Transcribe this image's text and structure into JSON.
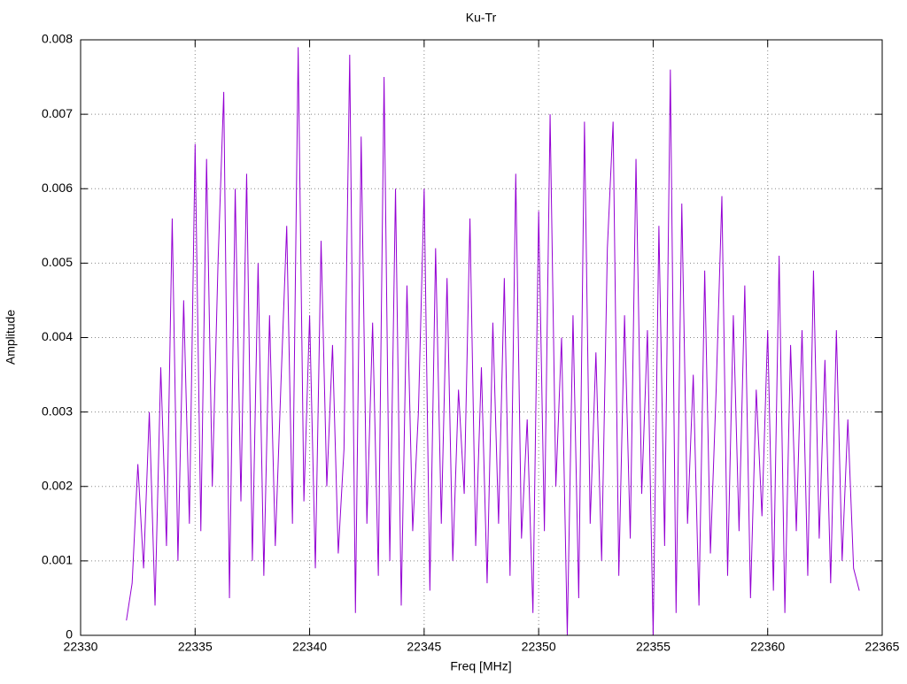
{
  "chart_data": {
    "type": "line",
    "title": "Ku-Tr",
    "x_label": "Freq [MHz]",
    "y_label": "Amplitude",
    "x": [
      22332.0,
      22332.25,
      22332.5,
      22332.75,
      22333.0,
      22333.25,
      22333.5,
      22333.75,
      22334.0,
      22334.25,
      22334.5,
      22334.75,
      22335.0,
      22335.25,
      22335.5,
      22335.75,
      22336.0,
      22336.25,
      22336.5,
      22336.75,
      22337.0,
      22337.25,
      22337.5,
      22337.75,
      22338.0,
      22338.25,
      22338.5,
      22338.75,
      22339.0,
      22339.25,
      22339.5,
      22339.75,
      22340.0,
      22340.25,
      22340.5,
      22340.75,
      22341.0,
      22341.25,
      22341.5,
      22341.75,
      22342.0,
      22342.25,
      22342.5,
      22342.75,
      22343.0,
      22343.25,
      22343.5,
      22343.75,
      22344.0,
      22344.25,
      22344.5,
      22344.75,
      22345.0,
      22345.25,
      22345.5,
      22345.75,
      22346.0,
      22346.25,
      22346.5,
      22346.75,
      22347.0,
      22347.25,
      22347.5,
      22347.75,
      22348.0,
      22348.25,
      22348.5,
      22348.75,
      22349.0,
      22349.25,
      22349.5,
      22349.75,
      22350.0,
      22350.25,
      22350.5,
      22350.75,
      22351.0,
      22351.25,
      22351.5,
      22351.75,
      22352.0,
      22352.25,
      22352.5,
      22352.75,
      22353.0,
      22353.25,
      22353.5,
      22353.75,
      22354.0,
      22354.25,
      22354.5,
      22354.75,
      22355.0,
      22355.25,
      22355.5,
      22355.75,
      22356.0,
      22356.25,
      22356.5,
      22356.75,
      22357.0,
      22357.25,
      22357.5,
      22357.75,
      22358.0,
      22358.25,
      22358.5,
      22358.75,
      22359.0,
      22359.25,
      22359.5,
      22359.75,
      22360.0,
      22360.25,
      22360.5,
      22360.75,
      22361.0,
      22361.25,
      22361.5,
      22361.75,
      22362.0,
      22362.25,
      22362.5,
      22362.75,
      22363.0,
      22363.25,
      22363.5,
      22363.75,
      22364.0
    ],
    "series": [
      {
        "name": "Ku-Tr",
        "color": "#9400d3",
        "values": [
          0.0002,
          0.0007,
          0.0023,
          0.0009,
          0.003,
          0.0004,
          0.0036,
          0.0012,
          0.0056,
          0.001,
          0.0045,
          0.0015,
          0.0066,
          0.0014,
          0.0064,
          0.002,
          0.005,
          0.0073,
          0.0005,
          0.006,
          0.0018,
          0.0062,
          0.001,
          0.005,
          0.0008,
          0.0043,
          0.0012,
          0.0034,
          0.0055,
          0.0015,
          0.0079,
          0.0018,
          0.0043,
          0.0009,
          0.0053,
          0.002,
          0.0039,
          0.0011,
          0.0025,
          0.0078,
          0.0003,
          0.0067,
          0.0015,
          0.0042,
          0.0008,
          0.0075,
          0.001,
          0.006,
          0.0004,
          0.0047,
          0.0014,
          0.003,
          0.006,
          0.0006,
          0.0052,
          0.0015,
          0.0048,
          0.001,
          0.0033,
          0.0019,
          0.0056,
          0.0012,
          0.0036,
          0.0007,
          0.0042,
          0.0015,
          0.0048,
          0.0008,
          0.0062,
          0.0013,
          0.0029,
          0.0003,
          0.0057,
          0.0014,
          0.007,
          0.002,
          0.004,
          0.0,
          0.0043,
          0.0005,
          0.0069,
          0.0015,
          0.0038,
          0.001,
          0.0052,
          0.0069,
          0.0008,
          0.0043,
          0.0013,
          0.0064,
          0.0019,
          0.0041,
          0.0,
          0.0055,
          0.0012,
          0.0076,
          0.0003,
          0.0058,
          0.0015,
          0.0035,
          0.0004,
          0.0049,
          0.0011,
          0.0033,
          0.0059,
          0.0008,
          0.0043,
          0.0014,
          0.0047,
          0.0005,
          0.0033,
          0.0016,
          0.0041,
          0.0006,
          0.0051,
          0.0003,
          0.0039,
          0.0014,
          0.0041,
          0.0008,
          0.0049,
          0.0013,
          0.0037,
          0.0007,
          0.0041,
          0.001,
          0.0029,
          0.0009,
          0.0006
        ]
      }
    ],
    "xlim": [
      22330,
      22365
    ],
    "ylim": [
      0,
      0.008
    ],
    "xticks": [
      22330,
      22335,
      22340,
      22345,
      22350,
      22355,
      22360,
      22365
    ],
    "yticks": [
      0,
      0.001,
      0.002,
      0.003,
      0.004,
      0.005,
      0.006,
      0.007,
      0.008
    ],
    "grid": true
  }
}
